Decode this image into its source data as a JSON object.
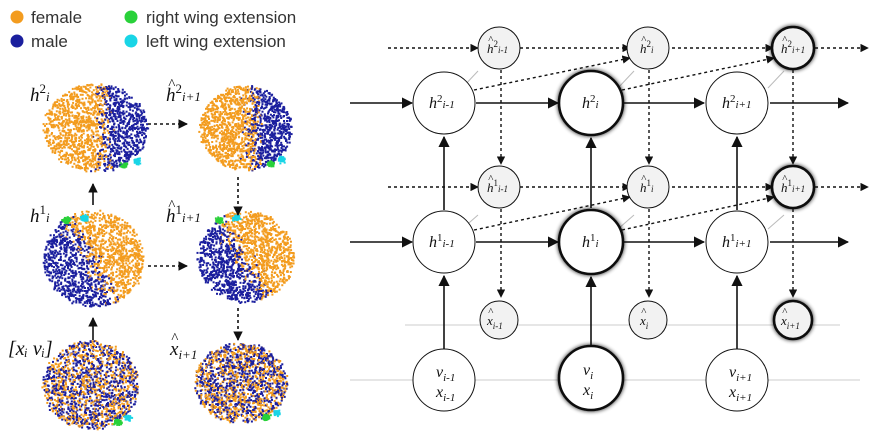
{
  "legend": [
    {
      "label": "female",
      "color": "#f39c1f"
    },
    {
      "label": "male",
      "color": "#1b1f9e"
    },
    {
      "label": "right wing extension",
      "color": "#29d13a"
    },
    {
      "label": "left wing extension",
      "color": "#19d5e6"
    }
  ],
  "colors": {
    "female": "#f39c1f",
    "male": "#1b1f9e",
    "right_wing": "#29d13a",
    "left_wing": "#19d5e6",
    "node_fill_hidden": "#ffffff",
    "node_fill_pred": "#f2f2f2",
    "edge": "#111111"
  },
  "scatter_labels": {
    "h2_i": {
      "base": "h",
      "sup": "2",
      "sub": "i",
      "hat": false
    },
    "h2_next": {
      "base": "h",
      "sup": "2",
      "sub": "i+1",
      "hat": true
    },
    "h1_i": {
      "base": "h",
      "sup": "1",
      "sub": "i",
      "hat": false
    },
    "h1_next": {
      "base": "h",
      "sup": "1",
      "sub": "i+1",
      "hat": true
    },
    "input": "[xᵢ vᵢ]",
    "x_next": {
      "base": "x",
      "sub": "i+1",
      "hat": true
    }
  },
  "nodes": [
    {
      "id": "h2_im1",
      "base": "h",
      "sup": "2",
      "sub": "i-1",
      "hat": false,
      "kind": "hidden",
      "bold": false
    },
    {
      "id": "h2_i",
      "base": "h",
      "sup": "2",
      "sub": "i",
      "hat": false,
      "kind": "hidden",
      "bold": true
    },
    {
      "id": "h2_ip1",
      "base": "h",
      "sup": "2",
      "sub": "i+1",
      "hat": false,
      "kind": "hidden",
      "bold": false
    },
    {
      "id": "h1_im1",
      "base": "h",
      "sup": "1",
      "sub": "i-1",
      "hat": false,
      "kind": "hidden",
      "bold": false
    },
    {
      "id": "h1_i",
      "base": "h",
      "sup": "1",
      "sub": "i",
      "hat": false,
      "kind": "hidden",
      "bold": true
    },
    {
      "id": "h1_ip1",
      "base": "h",
      "sup": "1",
      "sub": "i+1",
      "hat": false,
      "kind": "hidden",
      "bold": false
    },
    {
      "id": "ph2_im1",
      "base": "h",
      "sup": "2",
      "sub": "i-1",
      "hat": true,
      "kind": "pred",
      "bold": false
    },
    {
      "id": "ph2_i",
      "base": "h",
      "sup": "2",
      "sub": "i",
      "hat": true,
      "kind": "pred",
      "bold": false
    },
    {
      "id": "ph2_ip1",
      "base": "h",
      "sup": "2",
      "sub": "i+1",
      "hat": true,
      "kind": "pred",
      "bold": true
    },
    {
      "id": "ph1_im1",
      "base": "h",
      "sup": "1",
      "sub": "i-1",
      "hat": true,
      "kind": "pred",
      "bold": false
    },
    {
      "id": "ph1_i",
      "base": "h",
      "sup": "1",
      "sub": "i",
      "hat": true,
      "kind": "pred",
      "bold": false
    },
    {
      "id": "ph1_ip1",
      "base": "h",
      "sup": "1",
      "sub": "i+1",
      "hat": true,
      "kind": "pred",
      "bold": true
    },
    {
      "id": "px_im1",
      "base": "x",
      "sup": "",
      "sub": "i-1",
      "hat": true,
      "kind": "pred",
      "bold": false
    },
    {
      "id": "px_i",
      "base": "x",
      "sup": "",
      "sub": "i",
      "hat": true,
      "kind": "pred",
      "bold": false
    },
    {
      "id": "px_ip1",
      "base": "x",
      "sup": "",
      "sub": "i+1",
      "hat": true,
      "kind": "pred",
      "bold": true
    },
    {
      "id": "in_im1",
      "lines": [
        {
          "base": "v",
          "sub": "i-1"
        },
        {
          "base": "x",
          "sub": "i-1"
        }
      ],
      "kind": "input",
      "bold": false
    },
    {
      "id": "in_i",
      "lines": [
        {
          "base": "v",
          "sub": "i"
        },
        {
          "base": "x",
          "sub": "i"
        }
      ],
      "kind": "input",
      "bold": true
    },
    {
      "id": "in_ip1",
      "lines": [
        {
          "base": "v",
          "sub": "i+1"
        },
        {
          "base": "x",
          "sub": "i+1"
        }
      ],
      "kind": "input",
      "bold": false
    }
  ]
}
